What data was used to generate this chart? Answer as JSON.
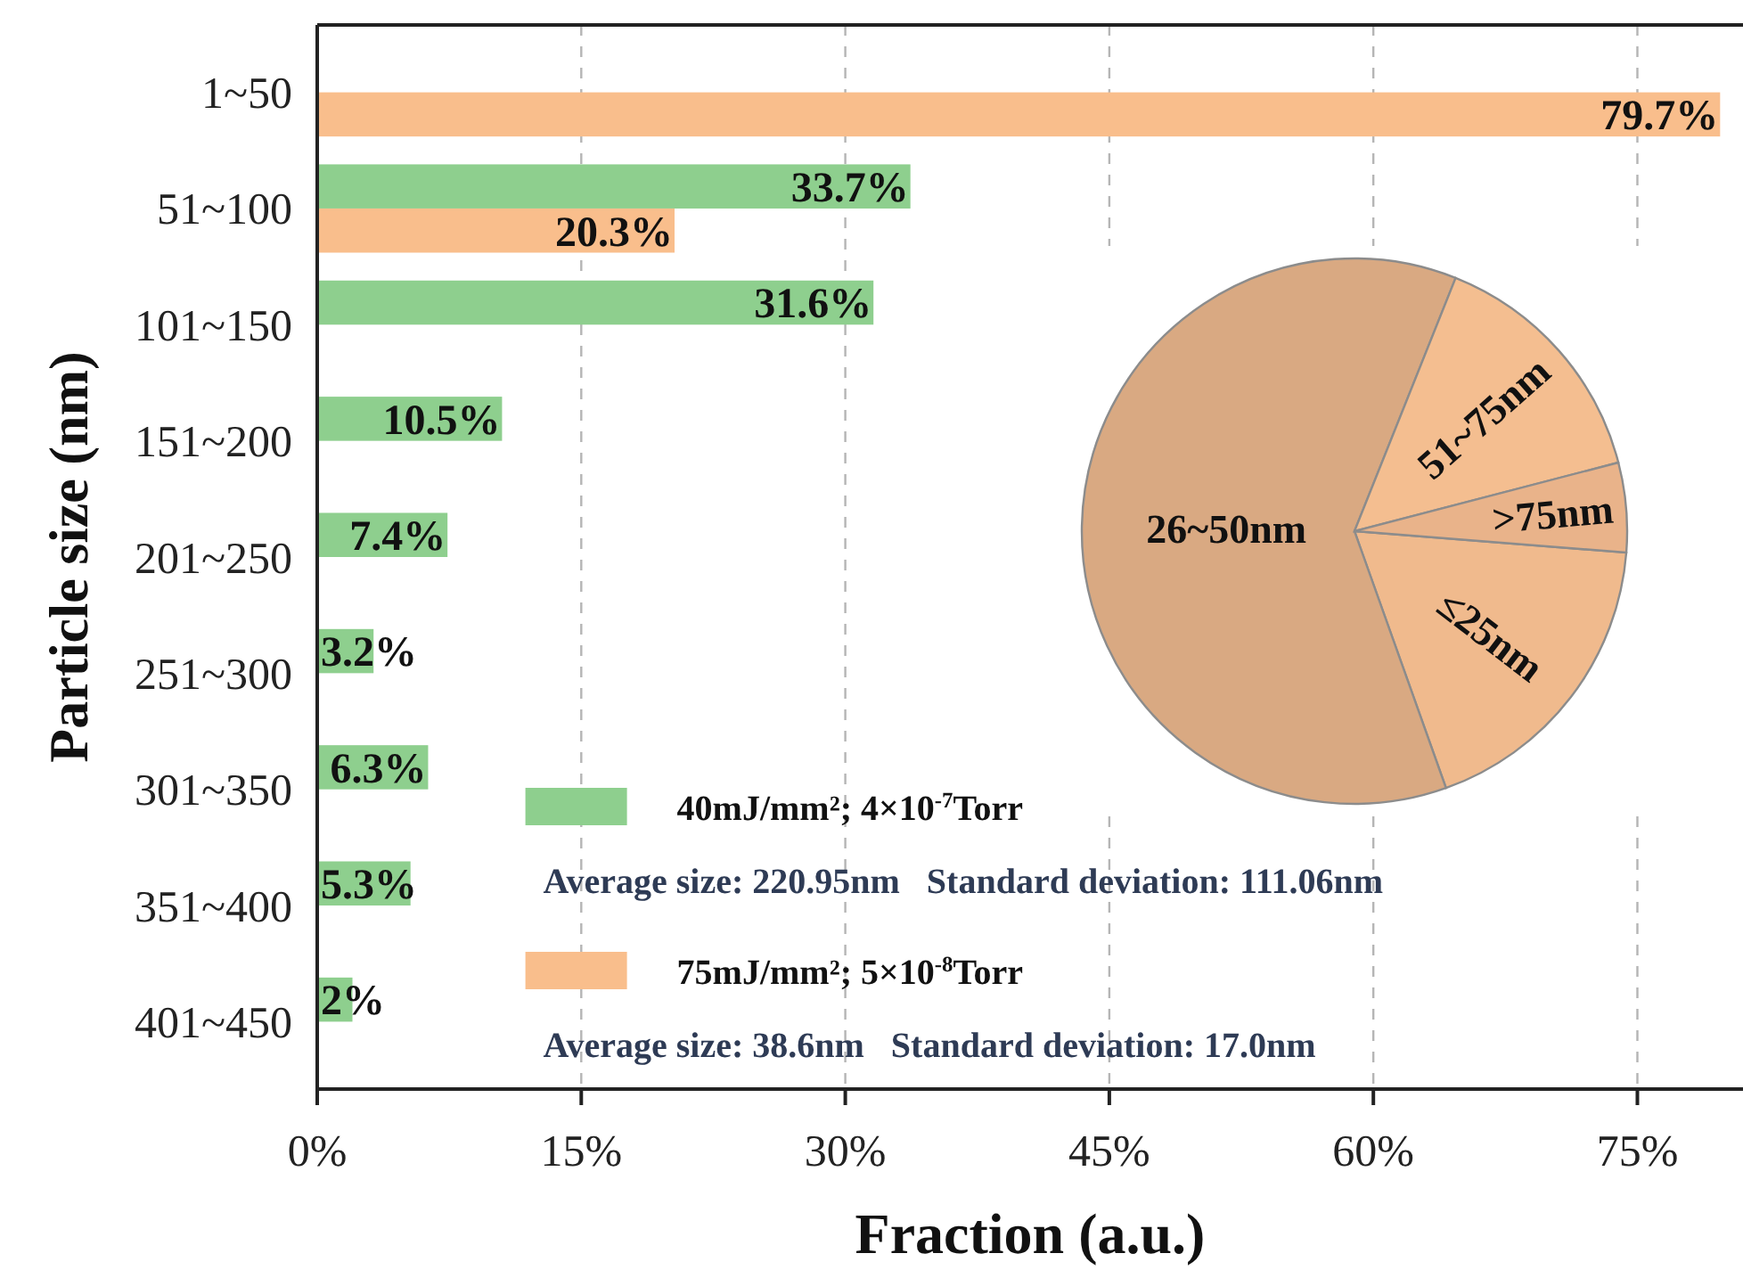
{
  "chart_data": [
    {
      "type": "bar",
      "orientation": "horizontal",
      "categories": [
        "1~50",
        "51~100",
        "101~150",
        "151~200",
        "201~250",
        "251~300",
        "301~350",
        "351~400",
        "401~450"
      ],
      "xlabel": "Fraction (a.u.)",
      "ylabel": "Particle size (nm)",
      "xlim": [
        0,
        81
      ],
      "xticks": [
        {
          "value": 0,
          "label": "0%"
        },
        {
          "value": 15,
          "label": "15%"
        },
        {
          "value": 30,
          "label": "30%"
        },
        {
          "value": 45,
          "label": "45%"
        },
        {
          "value": 60,
          "label": "60%"
        },
        {
          "value": 75,
          "label": "75%"
        }
      ],
      "grid": "x",
      "legend": "bottom",
      "series": [
        {
          "name": "40mJ/mm²; 4×10$^{-7}$Torr",
          "color": "#8ecf8e",
          "values": [
            null,
            33.7,
            31.6,
            10.5,
            7.4,
            3.2,
            6.3,
            5.3,
            2
          ],
          "value_labels": [
            null,
            "33.7%",
            "31.6%",
            "10.5%",
            "7.4%",
            "3.2%",
            "6.3%",
            "5.3%",
            "2%"
          ]
        },
        {
          "name": "75mJ/mm²; 5×10$^{-8}$Torr",
          "color": "#f9be8c",
          "values": [
            79.7,
            20.3,
            null,
            null,
            null,
            null,
            null,
            null,
            null
          ],
          "value_labels": [
            "79.7%",
            "20.3%",
            null,
            null,
            null,
            null,
            null,
            null,
            null
          ]
        }
      ],
      "annotations": [
        "Average size: 220.95nm   Standard deviation: 111.06nm",
        "Average size: 38.6nm   Standard deviation: 17.0nm"
      ]
    },
    {
      "type": "pie",
      "categories": [
        "≤25nm",
        "26~50nm",
        "51~75nm",
        ">75nm"
      ],
      "values": [
        18.3,
        61.5,
        14.9,
        5.3
      ],
      "colors": [
        "#f0ba8d",
        "#d9a982",
        "#f4be90",
        "#e9b38a"
      ]
    }
  ]
}
